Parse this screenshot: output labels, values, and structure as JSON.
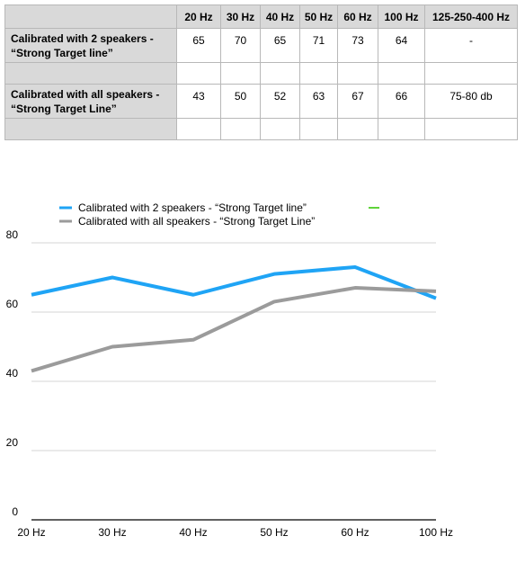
{
  "table": {
    "columns": [
      "",
      "20 Hz",
      "30 Hz",
      "40 Hz",
      "50 Hz",
      "60 Hz",
      "100 Hz",
      "125-250-400 Hz"
    ],
    "rows": [
      {
        "label_line1": "Calibrated with 2 speakers -",
        "label_line2": "“Strong Target line”",
        "values": [
          "65",
          "70",
          "65",
          "71",
          "73",
          "64",
          "-"
        ]
      },
      {
        "label_line1": "Calibrated with all speakers -",
        "label_line2": "“Strong Target Line”",
        "values": [
          "43",
          "50",
          "52",
          "63",
          "67",
          "66",
          "75-80 db"
        ]
      }
    ]
  },
  "chart_data": {
    "type": "line",
    "categories": [
      "20 Hz",
      "30 Hz",
      "40 Hz",
      "50 Hz",
      "60 Hz",
      "100 Hz"
    ],
    "series": [
      {
        "name": "Calibrated with 2 speakers -  “Strong Target line”",
        "color": "#1fa4f5",
        "values": [
          65,
          70,
          65,
          71,
          73,
          64
        ]
      },
      {
        "name": "Calibrated with all speakers - “Strong Target Line”",
        "color": "#9b9b9b",
        "values": [
          43,
          50,
          52,
          63,
          67,
          66
        ]
      }
    ],
    "extra_legend_color": "#5fd33a",
    "ylim": [
      0,
      80
    ],
    "yticks": [
      0,
      20,
      40,
      60,
      80
    ],
    "grid": true,
    "legend_position": "top"
  }
}
